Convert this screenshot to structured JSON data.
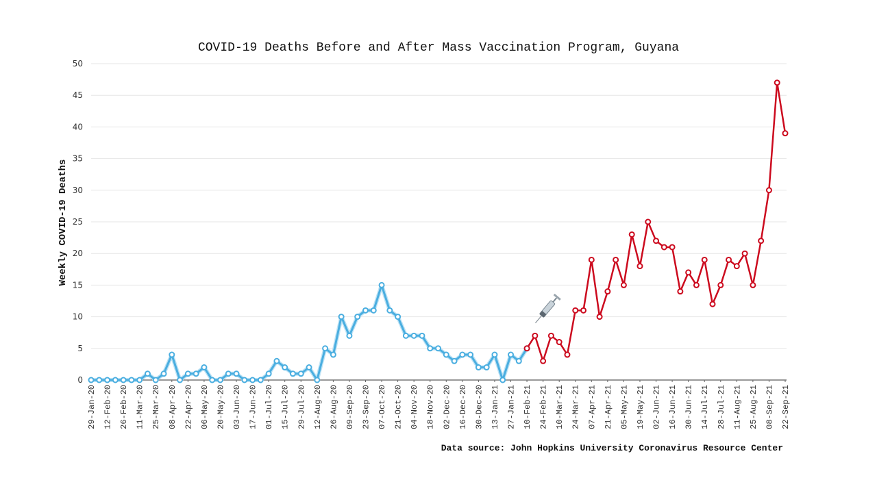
{
  "chart_data": {
    "type": "line",
    "title": "COVID-19 Deaths Before and After Mass Vaccination Program, Guyana",
    "xlabel": "",
    "ylabel": "Weekly COVID-19 Deaths",
    "ylim": [
      0,
      50
    ],
    "yticks": [
      0,
      5,
      10,
      15,
      20,
      25,
      30,
      35,
      40,
      45,
      50
    ],
    "grid": true,
    "source": "Data source: John Hopkins University Coronavirus Resource Center",
    "x_tick_labels": [
      "29-Jan-20",
      "12-Feb-20",
      "26-Feb-20",
      "11-Mar-20",
      "25-Mar-20",
      "08-Apr-20",
      "22-Apr-20",
      "06-May-20",
      "20-May-20",
      "03-Jun-20",
      "17-Jun-20",
      "01-Jul-20",
      "15-Jul-20",
      "29-Jul-20",
      "12-Aug-20",
      "26-Aug-20",
      "09-Sep-20",
      "23-Sep-20",
      "07-Oct-20",
      "21-Oct-20",
      "04-Nov-20",
      "18-Nov-20",
      "02-Dec-20",
      "16-Dec-20",
      "30-Dec-20",
      "13-Jan-21",
      "27-Jan-21",
      "10-Feb-21",
      "24-Feb-21",
      "10-Mar-21",
      "24-Mar-21",
      "07-Apr-21",
      "21-Apr-21",
      "05-May-21",
      "19-May-21",
      "02-Jun-21",
      "16-Jun-21",
      "30-Jun-21",
      "14-Jul-21",
      "28-Jul-21",
      "11-Aug-21",
      "25-Aug-21",
      "08-Sep-21",
      "22-Sep-21"
    ],
    "x_weeks_start": "29-Jan-20",
    "x_interval": "weekly",
    "annotation": {
      "label": "syringe-icon",
      "at_week_index": 54,
      "meaning": "start of mass vaccination program"
    },
    "series": [
      {
        "name": "Before vaccination",
        "color": "#4aaee0",
        "start_index": 0,
        "values": [
          0,
          0,
          0,
          0,
          0,
          0,
          0,
          1,
          0,
          1,
          4,
          0,
          1,
          1,
          2,
          0,
          0,
          1,
          1,
          0,
          0,
          0,
          1,
          3,
          2,
          1,
          1,
          2,
          0,
          5,
          4,
          10,
          7,
          10,
          11,
          11,
          15,
          11,
          10,
          7,
          7,
          7,
          5,
          5,
          4,
          3,
          4,
          4,
          2,
          2,
          4,
          0,
          4,
          3,
          5
        ]
      },
      {
        "name": "After vaccination",
        "color": "#cc0a1e",
        "start_index": 54,
        "values": [
          5,
          7,
          3,
          7,
          6,
          4,
          11,
          11,
          19,
          10,
          14,
          19,
          15,
          23,
          18,
          25,
          22,
          21,
          21,
          14,
          17,
          15,
          19,
          12,
          15,
          19,
          18,
          20,
          15,
          22,
          30,
          47,
          39
        ]
      }
    ]
  }
}
